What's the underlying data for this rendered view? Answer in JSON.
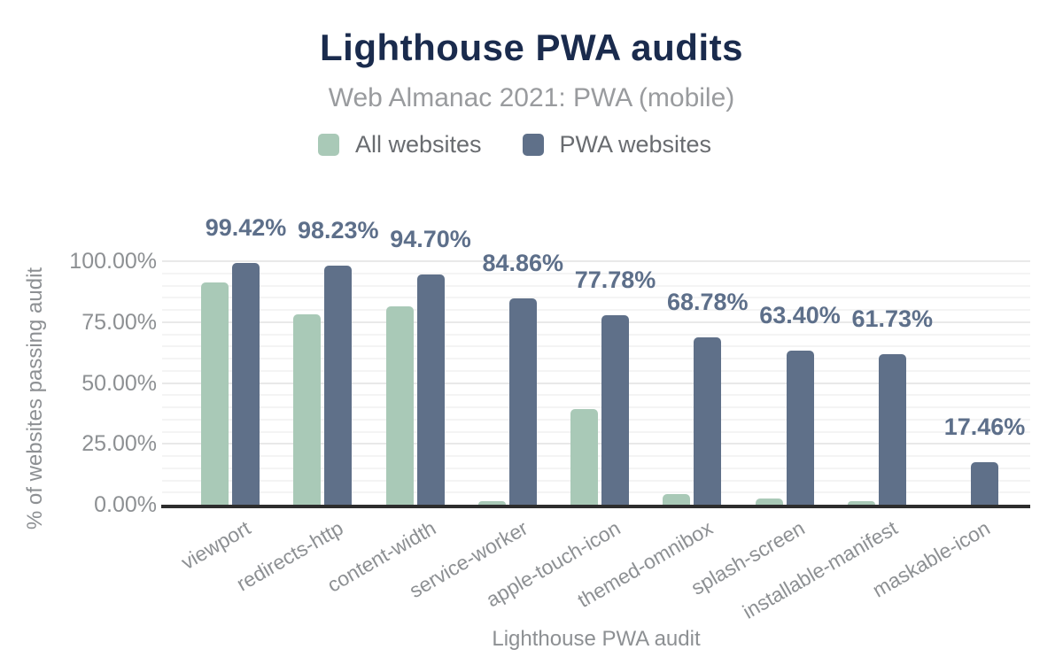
{
  "colors": {
    "background": "#ffffff",
    "title": "#1a2b4d",
    "subtitle": "#999b9e",
    "legend_text": "#696c70",
    "axis_text": "#8d9093",
    "data_label": "#5d6f8a",
    "bar_all": "#a9c9b7",
    "bar_pwa": "#5f7089",
    "grid_minor": "#f4f4f4",
    "grid_major": "#e9e9e9",
    "baseline": "#2d2d2d"
  },
  "chart_data": {
    "type": "bar",
    "title": "Lighthouse PWA audits",
    "subtitle": "Web Almanac 2021: PWA (mobile)",
    "xlabel": "Lighthouse PWA audit",
    "ylabel": "% of websites passing audit",
    "ylim": [
      0,
      100
    ],
    "grid": "horizontal, minor every 5%, major every 25%",
    "legend_position": "top",
    "categories": [
      "viewport",
      "redirects-http",
      "content-width",
      "service-worker",
      "apple-touch-icon",
      "themed-omnibox",
      "splash-screen",
      "installable-manifest",
      "maskable-icon"
    ],
    "series": [
      {
        "name": "All websites",
        "color": "#a9c9b7",
        "values": [
          91.1,
          78.2,
          81.5,
          1.6,
          39.2,
          4.4,
          2.4,
          1.4,
          0.1
        ]
      },
      {
        "name": "PWA websites",
        "color": "#5f7089",
        "values": [
          99.42,
          98.23,
          94.7,
          84.86,
          77.78,
          68.78,
          63.4,
          61.73,
          17.46
        ],
        "labels": [
          "99.42%",
          "98.23%",
          "94.70%",
          "84.86%",
          "77.78%",
          "68.78%",
          "63.40%",
          "61.73%",
          "17.46%"
        ]
      }
    ],
    "yticks": {
      "labels": [
        "0.00%",
        "25.00%",
        "50.00%",
        "75.00%",
        "100.00%"
      ],
      "values": [
        0,
        25,
        50,
        75,
        100
      ]
    }
  }
}
